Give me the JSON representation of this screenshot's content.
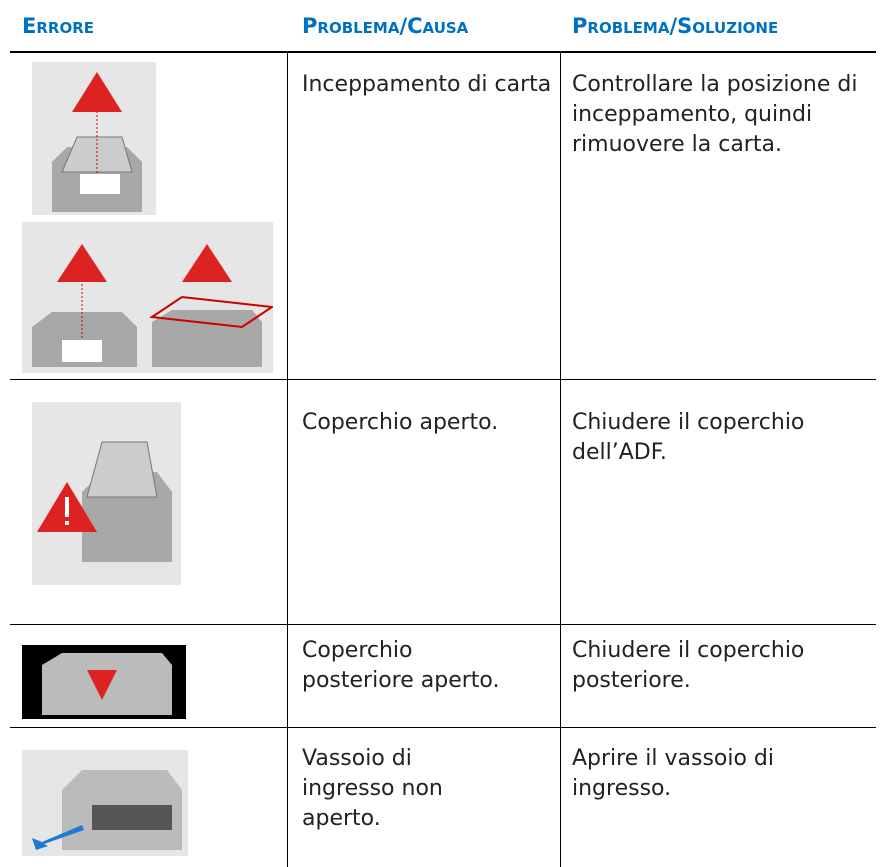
{
  "table": {
    "header": [
      "Errore",
      "Problema/Causa",
      "Problema/Soluzione"
    ],
    "rows": [
      [
        "Inceppamento di carta",
        "Controllare la posizione di inceppamento, quindi rimuovere la carta."
      ],
      [
        "Coperchio aperto.",
        "Chiudere il coperchio dell’ADF."
      ],
      [
        "Coperchio posteriore aperto.",
        "Chiudere il coperchio posteriore."
      ],
      [
        "Vassoio di ingresso non aperto.",
        "Aprire il vassoio di ingresso."
      ]
    ]
  }
}
